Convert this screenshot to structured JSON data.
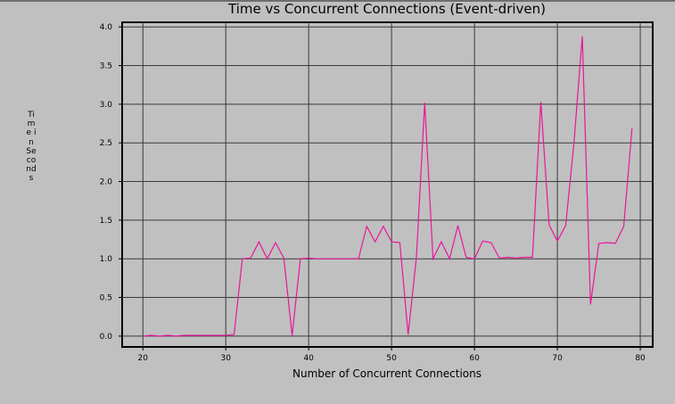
{
  "chart_data": {
    "type": "line",
    "title": "Time vs Concurrent Connections (Event-driven)",
    "xlabel": "Number of Concurrent Connections",
    "ylabel": "Time in Seconds",
    "xlim": [
      17.5,
      81.5
    ],
    "ylim": [
      -0.14,
      4.06
    ],
    "xticks": [
      20,
      30,
      40,
      50,
      60,
      70,
      80
    ],
    "yticks": [
      0.0,
      0.5,
      1.0,
      1.5,
      2.0,
      2.5,
      3.0,
      3.5,
      4.0
    ],
    "xtick_labels": [
      "20",
      "30",
      "40",
      "50",
      "60",
      "70",
      "80"
    ],
    "ytick_labels": [
      "0.0",
      "0.5",
      "1.0",
      "1.5",
      "2.0",
      "2.5",
      "3.0",
      "3.5",
      "4.0"
    ],
    "grid": true,
    "line_color": "#e8179a",
    "x": [
      20,
      21,
      22,
      23,
      24,
      25,
      26,
      27,
      28,
      29,
      30,
      31,
      32,
      33,
      34,
      35,
      36,
      37,
      38,
      39,
      40,
      41,
      42,
      43,
      44,
      45,
      46,
      47,
      48,
      49,
      50,
      51,
      52,
      53,
      54,
      55,
      56,
      57,
      58,
      59,
      60,
      61,
      62,
      63,
      64,
      65,
      66,
      67,
      68,
      69,
      70,
      71,
      72,
      73,
      74,
      75,
      76,
      77,
      78,
      79
    ],
    "y": [
      0.0,
      0.01,
      0.0,
      0.01,
      0.0,
      0.01,
      0.01,
      0.01,
      0.01,
      0.01,
      0.01,
      0.02,
      1.0,
      1.01,
      1.22,
      1.0,
      1.21,
      1.01,
      0.01,
      1.0,
      1.01,
      1.0,
      1.0,
      1.0,
      1.0,
      1.0,
      1.0,
      1.42,
      1.22,
      1.42,
      1.22,
      1.21,
      0.02,
      1.02,
      3.02,
      1.0,
      1.22,
      1.0,
      1.43,
      1.02,
      1.0,
      1.23,
      1.21,
      1.01,
      1.02,
      1.01,
      1.02,
      1.02,
      3.03,
      1.44,
      1.23,
      1.43,
      2.5,
      3.88,
      0.41,
      1.2,
      1.21,
      1.2,
      1.42,
      2.69
    ]
  }
}
